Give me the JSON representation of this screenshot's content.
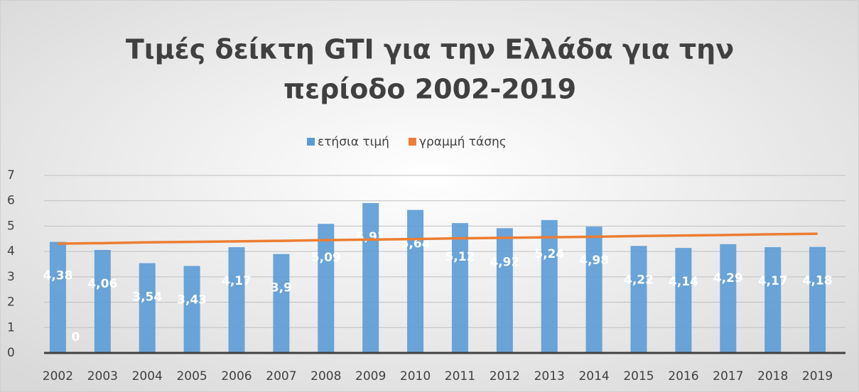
{
  "chart_data": {
    "type": "bar",
    "title": [
      "Τιμές δείκτη GTI για την Ελλάδα για την",
      "περίοδο 2002-2019"
    ],
    "categories": [
      "2002",
      "2003",
      "2004",
      "2005",
      "2006",
      "2007",
      "2008",
      "2009",
      "2010",
      "2011",
      "2012",
      "2013",
      "2014",
      "2015",
      "2016",
      "2017",
      "2018",
      "2019"
    ],
    "series": [
      {
        "name": "ετήσια τιμή",
        "color": "#5b9bd5",
        "type": "bar",
        "values": [
          4.38,
          4.06,
          3.54,
          3.43,
          4.17,
          3.9,
          5.09,
          5.91,
          5.64,
          5.12,
          4.92,
          5.24,
          4.98,
          4.22,
          4.14,
          4.29,
          4.17,
          4.18
        ],
        "value_labels": [
          "4,38",
          "4,06",
          "3,54",
          "3,43",
          "4,17",
          "3,9",
          "5,09",
          "5,91",
          "5,64",
          "5,12",
          "4,92",
          "5,24",
          "4,98",
          "4,22",
          "4,14",
          "4,29",
          "4,17",
          "4,18"
        ]
      },
      {
        "name": "γραμμή τάσης",
        "color": "#ed7d31",
        "type": "line",
        "values": [
          4.31,
          4.33,
          4.36,
          4.38,
          4.4,
          4.42,
          4.45,
          4.47,
          4.49,
          4.52,
          4.54,
          4.56,
          4.58,
          4.61,
          4.63,
          4.65,
          4.68,
          4.7
        ]
      }
    ],
    "annotations": [
      {
        "label": "0",
        "value": 0,
        "category": "2002"
      }
    ],
    "ylim": [
      0,
      7
    ],
    "yticks": [
      0,
      1,
      2,
      3,
      4,
      5,
      6,
      7
    ],
    "grid": true,
    "legend": "top"
  }
}
